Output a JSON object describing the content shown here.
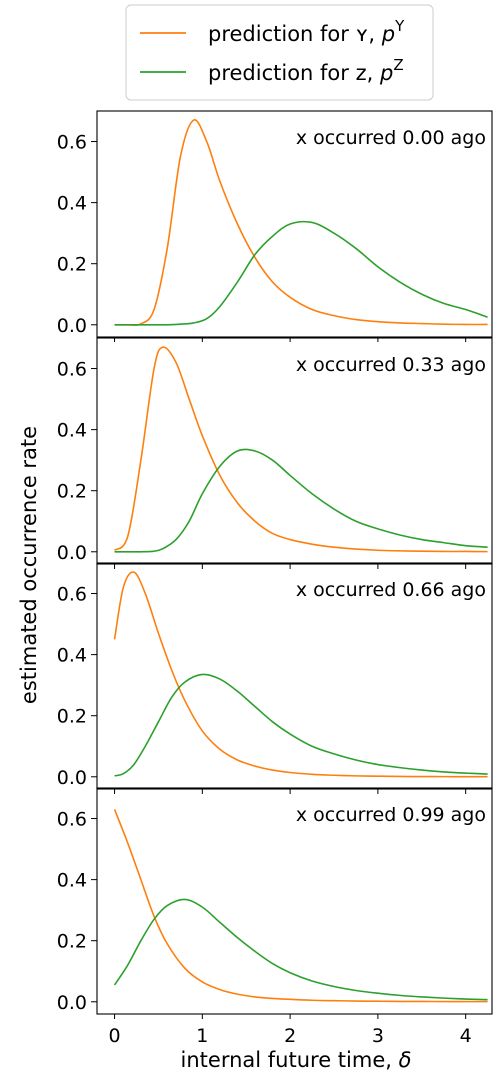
{
  "chart_data": {
    "type": "line",
    "title": "",
    "xlabel": "internal future time, δ",
    "ylabel": "estimated occurrence rate",
    "xlim": [
      -0.2,
      4.3
    ],
    "ylim": [
      -0.04,
      0.7
    ],
    "xticks": [
      0,
      1,
      2,
      3,
      4
    ],
    "xtick_labels": [
      "0",
      "1",
      "2",
      "3",
      "4"
    ],
    "yticks": [
      0.0,
      0.2,
      0.4,
      0.6
    ],
    "ytick_labels": [
      "0.0",
      "0.2",
      "0.4",
      "0.6"
    ],
    "grid": false,
    "legend": {
      "placement": "top-center",
      "entries": [
        {
          "main": "prediction for ʏ, ",
          "italic": "p",
          "sup": "Y",
          "color": "#ff7f0e"
        },
        {
          "main": "prediction for z, ",
          "italic": "p",
          "sup": "Z",
          "color": "#2ca02c"
        }
      ]
    },
    "series_styles": [
      {
        "key": "Y",
        "color": "#ff7f0e"
      },
      {
        "key": "Z",
        "color": "#2ca02c"
      }
    ],
    "panels": [
      {
        "annotation": "x occurred 0.00 ago",
        "x": [
          0,
          0.15,
          0.3,
          0.45,
          0.6,
          0.75,
          0.9,
          1.05,
          1.2,
          1.4,
          1.6,
          1.8,
          2.0,
          2.25,
          2.5,
          2.75,
          3.0,
          3.25,
          3.5,
          3.75,
          4.0,
          4.25
        ],
        "Y": [
          0,
          0,
          0.003,
          0.05,
          0.25,
          0.55,
          0.67,
          0.6,
          0.47,
          0.33,
          0.22,
          0.14,
          0.09,
          0.05,
          0.03,
          0.017,
          0.01,
          0.006,
          0.004,
          0.002,
          0.001,
          0.001
        ],
        "Z": [
          0,
          0,
          0,
          0,
          0,
          0.002,
          0.006,
          0.02,
          0.06,
          0.14,
          0.23,
          0.29,
          0.33,
          0.335,
          0.3,
          0.25,
          0.19,
          0.14,
          0.1,
          0.07,
          0.05,
          0.025
        ]
      },
      {
        "annotation": "x occurred 0.33 ago",
        "x": [
          0,
          0.15,
          0.3,
          0.45,
          0.55,
          0.7,
          0.85,
          1.0,
          1.2,
          1.4,
          1.6,
          1.8,
          2.0,
          2.25,
          2.5,
          2.75,
          3.0,
          3.25,
          3.5,
          3.75,
          4.0,
          4.25
        ],
        "Y": [
          0.005,
          0.05,
          0.3,
          0.6,
          0.67,
          0.62,
          0.5,
          0.38,
          0.25,
          0.16,
          0.1,
          0.06,
          0.04,
          0.025,
          0.015,
          0.009,
          0.005,
          0.003,
          0.002,
          0.001,
          0.001,
          0.0005
        ],
        "Z": [
          0,
          0,
          0,
          0.002,
          0.01,
          0.04,
          0.1,
          0.19,
          0.28,
          0.33,
          0.33,
          0.3,
          0.25,
          0.19,
          0.14,
          0.1,
          0.075,
          0.055,
          0.04,
          0.03,
          0.02,
          0.015
        ]
      },
      {
        "annotation": "x occurred 0.66 ago",
        "x": [
          0,
          0.1,
          0.22,
          0.35,
          0.5,
          0.65,
          0.8,
          1.0,
          1.2,
          1.4,
          1.6,
          1.8,
          2.0,
          2.25,
          2.5,
          2.75,
          3.0,
          3.25,
          3.5,
          3.75,
          4.0,
          4.25
        ],
        "Y": [
          0.45,
          0.62,
          0.67,
          0.6,
          0.47,
          0.35,
          0.25,
          0.15,
          0.09,
          0.055,
          0.035,
          0.022,
          0.014,
          0.008,
          0.005,
          0.003,
          0.002,
          0.001,
          0.0008,
          0.0005,
          0.0003,
          0.0002
        ],
        "Z": [
          0.003,
          0.01,
          0.04,
          0.1,
          0.18,
          0.26,
          0.31,
          0.335,
          0.32,
          0.28,
          0.23,
          0.18,
          0.14,
          0.1,
          0.075,
          0.055,
          0.04,
          0.03,
          0.022,
          0.016,
          0.012,
          0.009
        ]
      },
      {
        "annotation": "x occurred 0.99 ago",
        "x": [
          0,
          0.15,
          0.3,
          0.45,
          0.6,
          0.8,
          1.0,
          1.2,
          1.4,
          1.6,
          1.8,
          2.0,
          2.25,
          2.5,
          2.75,
          3.0,
          3.25,
          3.5,
          3.75,
          4.0,
          4.25
        ],
        "Y": [
          0.63,
          0.52,
          0.4,
          0.28,
          0.19,
          0.11,
          0.065,
          0.04,
          0.025,
          0.016,
          0.011,
          0.008,
          0.005,
          0.0035,
          0.0025,
          0.0018,
          0.0013,
          0.001,
          0.0008,
          0.0006,
          0.0005
        ],
        "Z": [
          0.055,
          0.12,
          0.2,
          0.27,
          0.315,
          0.335,
          0.31,
          0.26,
          0.21,
          0.165,
          0.125,
          0.095,
          0.068,
          0.05,
          0.037,
          0.028,
          0.021,
          0.016,
          0.012,
          0.009,
          0.007
        ]
      }
    ]
  }
}
